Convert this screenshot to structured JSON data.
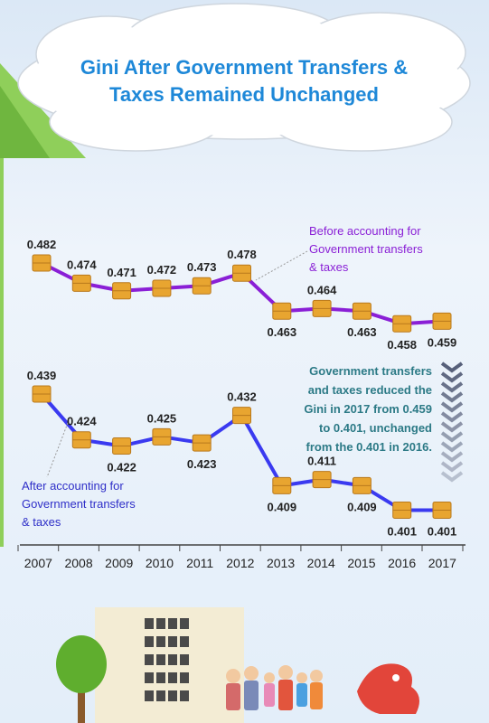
{
  "title": {
    "line1": "Gini After Government Transfers &",
    "line2": "Taxes Remained Unchanged"
  },
  "annotations": {
    "before_label": [
      "Before accounting for",
      "Government transfers",
      "& taxes"
    ],
    "after_label": [
      "After accounting for",
      "Government transfers",
      "& taxes"
    ],
    "note": [
      "Government transfers",
      "and taxes reduced the",
      "Gini in 2017 from 0.459",
      "to 0.401, unchanged",
      "from the 0.401 in 2016."
    ]
  },
  "colors": {
    "title": "#1e88d8",
    "before_line": "#8a1fd6",
    "after_line": "#3a3af0",
    "marker": "#e8a530",
    "note_text": "#2c7a86",
    "before_text": "#8a1fd6",
    "after_text": "#2f2fc8",
    "arrow": "#57607a",
    "axis": "#444444"
  },
  "chart_data": {
    "type": "line",
    "x": [
      "2007",
      "2008",
      "2009",
      "2010",
      "2011",
      "2012",
      "2013",
      "2014",
      "2015",
      "2016",
      "2017"
    ],
    "series": [
      {
        "name": "Before accounting for Government transfers & taxes",
        "values": [
          0.482,
          0.474,
          0.471,
          0.472,
          0.473,
          0.478,
          0.463,
          0.464,
          0.463,
          0.458,
          0.459
        ],
        "labels": [
          "0.482",
          "0.474",
          "0.471",
          "0.472",
          "0.473",
          "0.478",
          "0.463",
          "0.464",
          "0.463",
          "0.458",
          "0.459"
        ]
      },
      {
        "name": "After accounting for Government transfers & taxes",
        "values": [
          0.439,
          0.424,
          0.422,
          0.425,
          0.423,
          0.432,
          0.409,
          0.411,
          0.409,
          0.401,
          0.401
        ],
        "labels": [
          "0.439",
          "0.424",
          "0.422",
          "0.425",
          "0.423",
          "0.432",
          "0.409",
          "0.411",
          "0.409",
          "0.401",
          "0.401"
        ]
      }
    ],
    "legend": "none",
    "grid": false
  }
}
